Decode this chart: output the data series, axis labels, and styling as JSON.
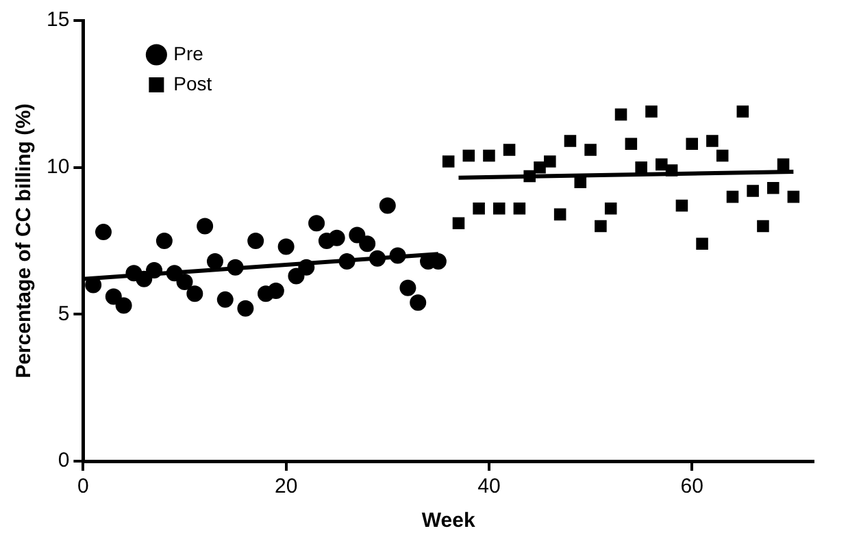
{
  "chart_data": {
    "type": "scatter",
    "xlabel": "Week",
    "ylabel": "Percentage of CC billing (%)",
    "xlim": [
      0,
      72
    ],
    "xticks": [
      0,
      20,
      40,
      60
    ],
    "ylim": [
      0,
      15
    ],
    "yticks": [
      0,
      5,
      10,
      15
    ],
    "grid": false,
    "legend": "top left",
    "series": [
      {
        "name": "Pre",
        "marker": "circle",
        "color": "#000000",
        "x": [
          1,
          2,
          3,
          4,
          5,
          6,
          7,
          8,
          9,
          10,
          11,
          12,
          13,
          14,
          15,
          16,
          17,
          18,
          19,
          20,
          21,
          22,
          23,
          24,
          25,
          26,
          27,
          28,
          29,
          30,
          31,
          32,
          33,
          34,
          35
        ],
        "values": [
          6.0,
          7.8,
          5.6,
          5.3,
          6.4,
          6.2,
          6.5,
          7.5,
          6.4,
          6.1,
          5.7,
          8.0,
          6.8,
          5.5,
          6.6,
          5.2,
          7.5,
          5.7,
          5.8,
          7.3,
          6.3,
          6.6,
          8.1,
          7.5,
          7.6,
          6.8,
          7.7,
          7.4,
          6.9,
          8.7,
          7.0,
          5.9,
          5.4,
          6.8,
          6.8
        ]
      },
      {
        "name": "Post",
        "marker": "square",
        "color": "#000000",
        "x": [
          36,
          37,
          38,
          39,
          40,
          41,
          42,
          43,
          44,
          45,
          46,
          47,
          48,
          49,
          50,
          51,
          52,
          53,
          54,
          55,
          56,
          57,
          58,
          59,
          60,
          61,
          62,
          63,
          64,
          65,
          66,
          67,
          68,
          69,
          70
        ],
        "values": [
          10.2,
          8.1,
          10.4,
          8.6,
          10.4,
          8.6,
          10.6,
          8.6,
          9.7,
          10.0,
          10.2,
          8.4,
          10.9,
          9.5,
          10.6,
          8.0,
          8.6,
          11.8,
          10.8,
          10.0,
          11.9,
          10.1,
          9.9,
          8.7,
          10.8,
          7.4,
          10.9,
          10.4,
          9.0,
          11.9,
          9.2,
          8.0,
          9.3,
          10.1,
          9.0
        ]
      },
      {
        "type": "line",
        "marker": "none",
        "color": "#000000",
        "x": [
          0,
          35
        ],
        "values": [
          6.2,
          7.05
        ]
      },
      {
        "type": "line",
        "marker": "none",
        "color": "#000000",
        "x": [
          37,
          70
        ],
        "values": [
          9.65,
          9.85
        ]
      }
    ]
  }
}
